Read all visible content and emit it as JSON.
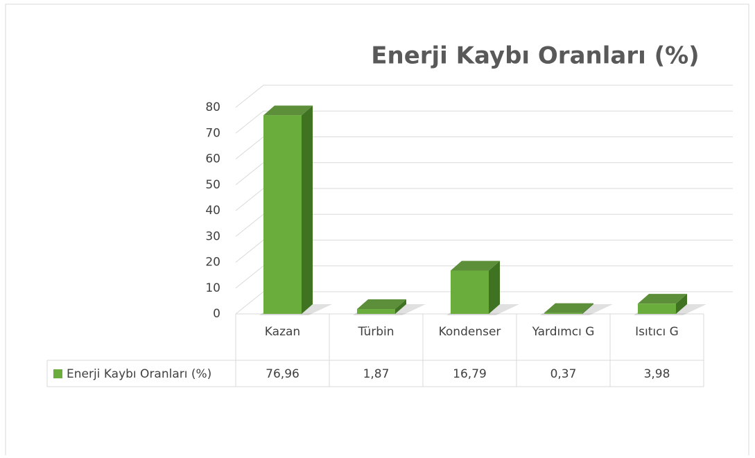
{
  "chart_data": {
    "type": "bar3d",
    "title": "Enerji Kaybı Oranları (%)",
    "categories": [
      "Kazan",
      "Türbin",
      "Kondenser",
      "Yardımcı G",
      "Isıtıcı G"
    ],
    "series": [
      {
        "name": "Enerji Kaybı Oranları (%)",
        "color": "#6aad3d",
        "values": [
          76.96,
          1.87,
          16.79,
          0.37,
          3.98
        ],
        "value_labels": [
          "76,96",
          "1,87",
          "16,79",
          "0,37",
          "3,98"
        ]
      }
    ],
    "ylim": [
      0,
      80
    ],
    "yticks": [
      0,
      10,
      20,
      30,
      40,
      50,
      60,
      70,
      80
    ],
    "grid": true,
    "data_table": true
  }
}
